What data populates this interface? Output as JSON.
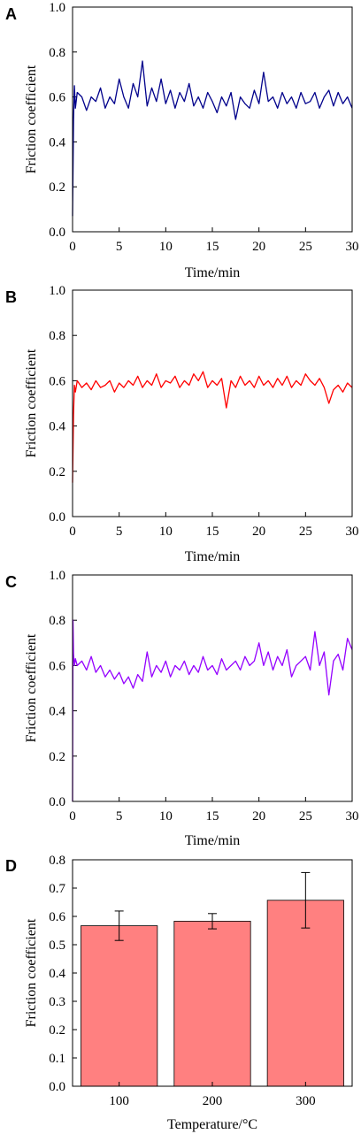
{
  "colors": {
    "A": "#00008b",
    "B": "#ff0000",
    "C": "#9400ff",
    "D": "#ff8080"
  },
  "chart_data": [
    {
      "panel": "A",
      "type": "line",
      "xlabel": "Time/min",
      "ylabel": "Friction coefficient",
      "xlim": [
        0,
        30
      ],
      "ylim": [
        0,
        1.0
      ],
      "xticks": [
        "0",
        "5",
        "10",
        "15",
        "20",
        "25",
        "30"
      ],
      "yticks": [
        "0.0",
        "0.2",
        "0.4",
        "0.6",
        "0.8",
        "1.0"
      ],
      "series": [
        {
          "x": [
            0,
            0.1,
            0.2,
            0.3,
            0.5,
            1,
            1.5,
            2,
            2.5,
            3,
            3.5,
            4,
            4.5,
            5,
            5.5,
            6,
            6.5,
            7,
            7.5,
            8,
            8.5,
            9,
            9.5,
            10,
            10.5,
            11,
            11.5,
            12,
            12.5,
            13,
            13.5,
            14,
            14.5,
            15,
            15.5,
            16,
            16.5,
            17,
            17.5,
            18,
            18.5,
            19,
            19.5,
            20,
            20.5,
            21,
            21.5,
            22,
            22.5,
            23,
            23.5,
            24,
            24.5,
            25,
            25.5,
            26,
            26.5,
            27,
            27.5,
            28,
            28.5,
            29,
            29.5,
            30
          ],
          "y": [
            0.07,
            0.5,
            0.65,
            0.55,
            0.62,
            0.6,
            0.54,
            0.6,
            0.58,
            0.64,
            0.55,
            0.6,
            0.57,
            0.68,
            0.6,
            0.55,
            0.66,
            0.6,
            0.76,
            0.56,
            0.64,
            0.58,
            0.68,
            0.57,
            0.63,
            0.55,
            0.62,
            0.58,
            0.66,
            0.56,
            0.6,
            0.55,
            0.62,
            0.58,
            0.53,
            0.6,
            0.56,
            0.62,
            0.5,
            0.6,
            0.57,
            0.55,
            0.63,
            0.57,
            0.71,
            0.58,
            0.6,
            0.55,
            0.62,
            0.57,
            0.6,
            0.55,
            0.62,
            0.57,
            0.58,
            0.62,
            0.55,
            0.6,
            0.63,
            0.56,
            0.62,
            0.57,
            0.6,
            0.55
          ]
        }
      ]
    },
    {
      "panel": "B",
      "type": "line",
      "xlabel": "Time/min",
      "ylabel": "Friction coefficient",
      "xlim": [
        0,
        30
      ],
      "ylim": [
        0,
        1.0
      ],
      "xticks": [
        "0",
        "5",
        "10",
        "15",
        "20",
        "25",
        "30"
      ],
      "yticks": [
        "0.0",
        "0.2",
        "0.4",
        "0.6",
        "0.8",
        "1.0"
      ],
      "series": [
        {
          "x": [
            0,
            0.1,
            0.2,
            0.3,
            0.5,
            1,
            1.5,
            2,
            2.5,
            3,
            3.5,
            4,
            4.5,
            5,
            5.5,
            6,
            6.5,
            7,
            7.5,
            8,
            8.5,
            9,
            9.5,
            10,
            10.5,
            11,
            11.5,
            12,
            12.5,
            13,
            13.5,
            14,
            14.5,
            15,
            15.5,
            16,
            16.5,
            17,
            17.5,
            18,
            18.5,
            19,
            19.5,
            20,
            20.5,
            21,
            21.5,
            22,
            22.5,
            23,
            23.5,
            24,
            24.5,
            25,
            25.5,
            26,
            26.5,
            27,
            27.5,
            28,
            28.5,
            29,
            29.5,
            30
          ],
          "y": [
            0.15,
            0.45,
            0.58,
            0.55,
            0.6,
            0.57,
            0.59,
            0.56,
            0.6,
            0.57,
            0.58,
            0.6,
            0.55,
            0.59,
            0.57,
            0.6,
            0.58,
            0.62,
            0.57,
            0.6,
            0.58,
            0.63,
            0.57,
            0.6,
            0.59,
            0.62,
            0.57,
            0.6,
            0.58,
            0.63,
            0.6,
            0.64,
            0.57,
            0.6,
            0.58,
            0.61,
            0.48,
            0.6,
            0.57,
            0.62,
            0.58,
            0.6,
            0.57,
            0.62,
            0.58,
            0.6,
            0.57,
            0.61,
            0.58,
            0.62,
            0.57,
            0.6,
            0.58,
            0.63,
            0.6,
            0.58,
            0.61,
            0.57,
            0.5,
            0.56,
            0.58,
            0.55,
            0.59,
            0.57
          ]
        }
      ]
    },
    {
      "panel": "C",
      "type": "line",
      "xlabel": "Time/min",
      "ylabel": "Friction coefficient",
      "xlim": [
        0,
        30
      ],
      "ylim": [
        0,
        1.0
      ],
      "xticks": [
        "0",
        "5",
        "10",
        "15",
        "20",
        "25",
        "30"
      ],
      "yticks": [
        "0.0",
        "0.2",
        "0.4",
        "0.6",
        "0.8",
        "1.0"
      ],
      "series": [
        {
          "x": [
            0,
            0.05,
            0.1,
            0.2,
            0.3,
            0.5,
            1,
            1.5,
            2,
            2.5,
            3,
            3.5,
            4,
            4.5,
            5,
            5.5,
            6,
            6.5,
            7,
            7.5,
            8,
            8.5,
            9,
            9.5,
            10,
            10.5,
            11,
            11.5,
            12,
            12.5,
            13,
            13.5,
            14,
            14.5,
            15,
            15.5,
            16,
            16.5,
            17,
            17.5,
            18,
            18.5,
            19,
            19.5,
            20,
            20.5,
            21,
            21.5,
            22,
            22.5,
            23,
            23.5,
            24,
            24.5,
            25,
            25.5,
            26,
            26.5,
            27,
            27.5,
            28,
            28.5,
            29,
            29.5,
            30
          ],
          "y": [
            0.0,
            0.8,
            0.65,
            0.6,
            0.63,
            0.6,
            0.62,
            0.58,
            0.64,
            0.57,
            0.6,
            0.55,
            0.58,
            0.54,
            0.57,
            0.52,
            0.55,
            0.5,
            0.56,
            0.53,
            0.66,
            0.55,
            0.6,
            0.57,
            0.62,
            0.55,
            0.6,
            0.58,
            0.62,
            0.56,
            0.6,
            0.57,
            0.64,
            0.58,
            0.6,
            0.56,
            0.63,
            0.58,
            0.6,
            0.62,
            0.58,
            0.64,
            0.6,
            0.62,
            0.7,
            0.6,
            0.66,
            0.58,
            0.64,
            0.6,
            0.67,
            0.55,
            0.6,
            0.62,
            0.64,
            0.58,
            0.75,
            0.6,
            0.66,
            0.47,
            0.62,
            0.65,
            0.58,
            0.72,
            0.67
          ]
        }
      ]
    },
    {
      "panel": "D",
      "type": "bar",
      "xlabel": "Temperature/°C",
      "ylabel": "Friction coefficient",
      "categories": [
        "100",
        "200",
        "300"
      ],
      "values": [
        0.567,
        0.583,
        0.657
      ],
      "errors": [
        0.052,
        0.027,
        0.098
      ],
      "ylim": [
        0,
        0.8
      ],
      "yticks": [
        "0.0",
        "0.1",
        "0.2",
        "0.3",
        "0.4",
        "0.5",
        "0.6",
        "0.7",
        "0.8"
      ]
    }
  ]
}
